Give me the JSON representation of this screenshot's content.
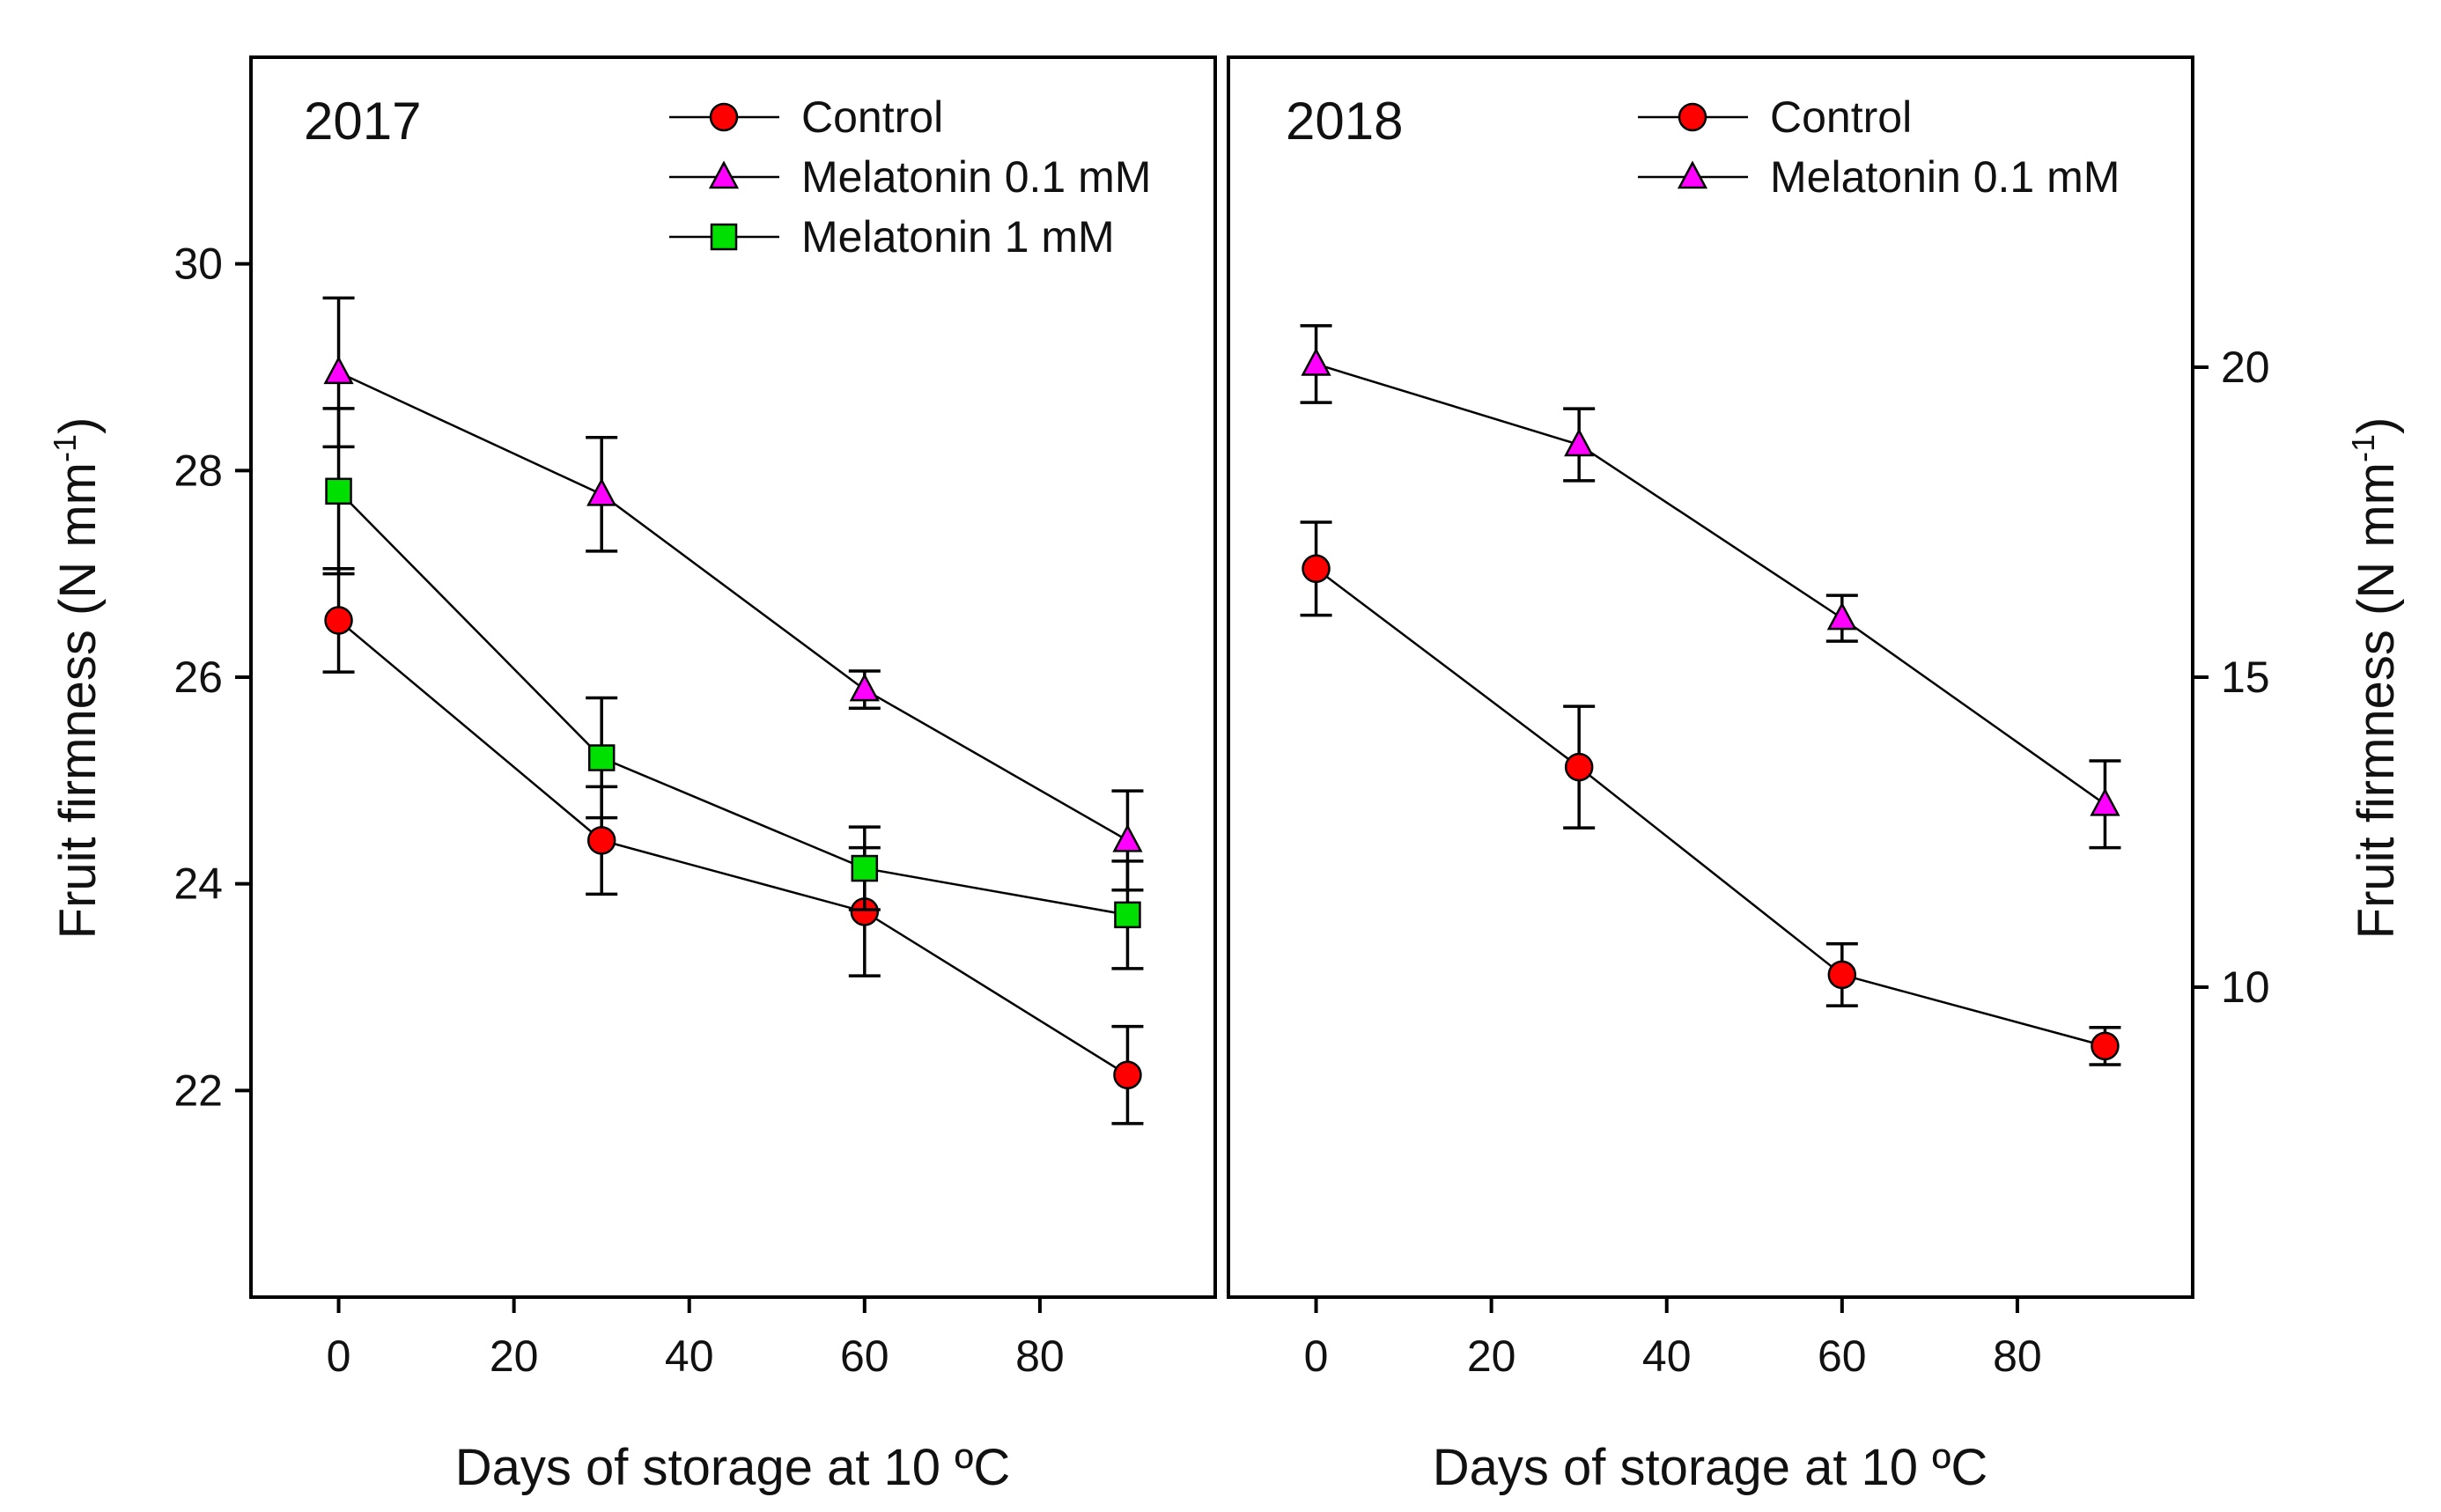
{
  "chart_data": [
    {
      "type": "line",
      "title": "2017",
      "xlabel": "Days of storage at 10 ºC",
      "ylabel": "Fruit firmness (N mm",
      "ylabel_superscript": "-1",
      "ylabel_close": ")",
      "xlim": [
        -10,
        100
      ],
      "ylim": [
        20,
        32
      ],
      "x_ticks": [
        0,
        20,
        40,
        60,
        80
      ],
      "y_ticks": [
        22,
        24,
        26,
        28,
        30
      ],
      "x_tick_labels": [
        "0",
        "20",
        "40",
        "60",
        "80"
      ],
      "y_tick_labels": [
        "22",
        "24",
        "26",
        "28",
        "30"
      ],
      "y_axis_side": "left",
      "legend": "top-right",
      "series": [
        {
          "name": "Control",
          "marker": "circle",
          "color": "#ff0000",
          "x": [
            0,
            30,
            60,
            90
          ],
          "values": [
            26.55,
            24.42,
            23.73,
            22.15
          ],
          "errors": [
            0.5,
            0.52,
            0.62,
            0.47
          ]
        },
        {
          "name": "Melatonin 0.1 mM",
          "marker": "triangle",
          "color": "#ff00ff",
          "x": [
            0,
            30,
            60,
            90
          ],
          "values": [
            28.95,
            27.77,
            25.88,
            24.42
          ],
          "errors": [
            0.72,
            0.55,
            0.18,
            0.48
          ]
        },
        {
          "name": "Melatonin 1 mM",
          "marker": "square",
          "color": "#00e000",
          "x": [
            0,
            30,
            60,
            90
          ],
          "values": [
            27.8,
            25.22,
            24.15,
            23.7
          ],
          "errors": [
            0.8,
            0.58,
            0.4,
            0.52
          ]
        }
      ]
    },
    {
      "type": "line",
      "title": "2018",
      "xlabel": "Days of storage at 10 ºC",
      "ylabel": "Fruit firmness (N mm",
      "ylabel_superscript": "-1",
      "ylabel_close": ")",
      "xlim": [
        -10,
        100
      ],
      "ylim": [
        5,
        25
      ],
      "x_ticks": [
        0,
        20,
        40,
        60,
        80
      ],
      "y_ticks": [
        10,
        15,
        20
      ],
      "x_tick_labels": [
        "0",
        "20",
        "40",
        "60",
        "80"
      ],
      "y_tick_labels": [
        "10",
        "15",
        "20"
      ],
      "y_axis_side": "right",
      "legend": "top-right",
      "series": [
        {
          "name": "Control",
          "marker": "circle",
          "color": "#ff0000",
          "x": [
            0,
            30,
            60,
            90
          ],
          "values": [
            16.75,
            13.55,
            10.2,
            9.05
          ],
          "errors": [
            0.75,
            0.98,
            0.5,
            0.3
          ]
        },
        {
          "name": "Melatonin 0.1 mM",
          "marker": "triangle",
          "color": "#ff00ff",
          "x": [
            0,
            30,
            60,
            90
          ],
          "values": [
            20.05,
            18.75,
            15.95,
            12.95
          ],
          "errors": [
            0.62,
            0.58,
            0.37,
            0.7
          ]
        }
      ]
    }
  ]
}
